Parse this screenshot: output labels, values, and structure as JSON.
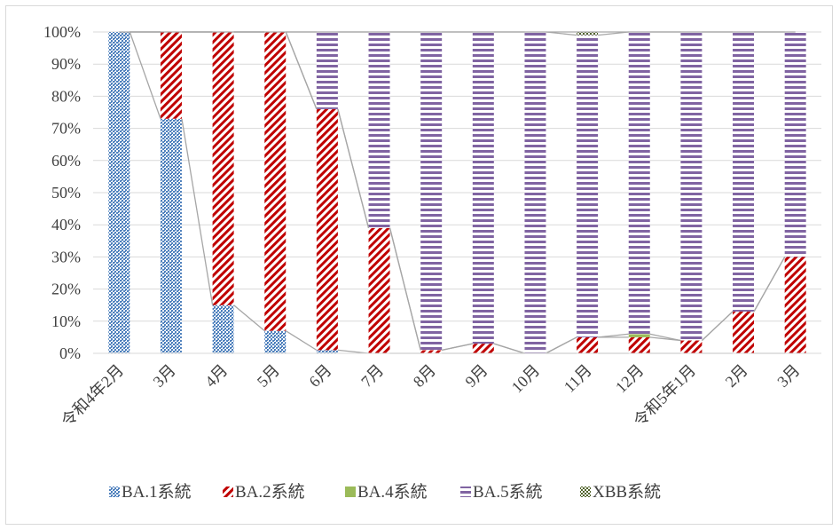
{
  "chart_data": {
    "type": "bar",
    "stacked": true,
    "percent_stacked": true,
    "categories": [
      "令和4年2月",
      "3月",
      "4月",
      "5月",
      "6月",
      "7月",
      "8月",
      "9月",
      "10月",
      "11月",
      "12月",
      "令和5年1月",
      "2月",
      "3月"
    ],
    "series": [
      {
        "name": "BA.1系統",
        "color": "#4f81bd",
        "pattern": "dots",
        "values": [
          100,
          73,
          15,
          7,
          1,
          0,
          0,
          0,
          0,
          0,
          0,
          0,
          0,
          0
        ]
      },
      {
        "name": "BA.2系統",
        "color": "#c00000",
        "pattern": "diagonal",
        "values": [
          0,
          27,
          85,
          93,
          75,
          39,
          1,
          3,
          0,
          5,
          5,
          4,
          13,
          30
        ]
      },
      {
        "name": "BA.4系統",
        "color": "#9bbb59",
        "pattern": "solid",
        "values": [
          0,
          0,
          0,
          0,
          0,
          0,
          0,
          0,
          0,
          0,
          1,
          0,
          0,
          0
        ]
      },
      {
        "name": "BA.5系統",
        "color": "#8064a2",
        "pattern": "horizontal",
        "values": [
          0,
          0,
          0,
          0,
          24,
          61,
          99,
          97,
          100,
          94,
          94,
          96,
          87,
          70
        ]
      },
      {
        "name": "XBB系統",
        "color": "#4f6228",
        "pattern": "checker",
        "values": [
          0,
          0,
          0,
          0,
          0,
          0,
          0,
          0,
          0,
          1,
          0,
          0,
          0,
          0
        ]
      }
    ],
    "y_ticks": [
      "0%",
      "10%",
      "20%",
      "30%",
      "40%",
      "50%",
      "60%",
      "70%",
      "80%",
      "90%",
      "100%"
    ],
    "ylim": [
      0,
      100
    ],
    "grid": true,
    "series_lines": true,
    "legend_position": "bottom"
  }
}
